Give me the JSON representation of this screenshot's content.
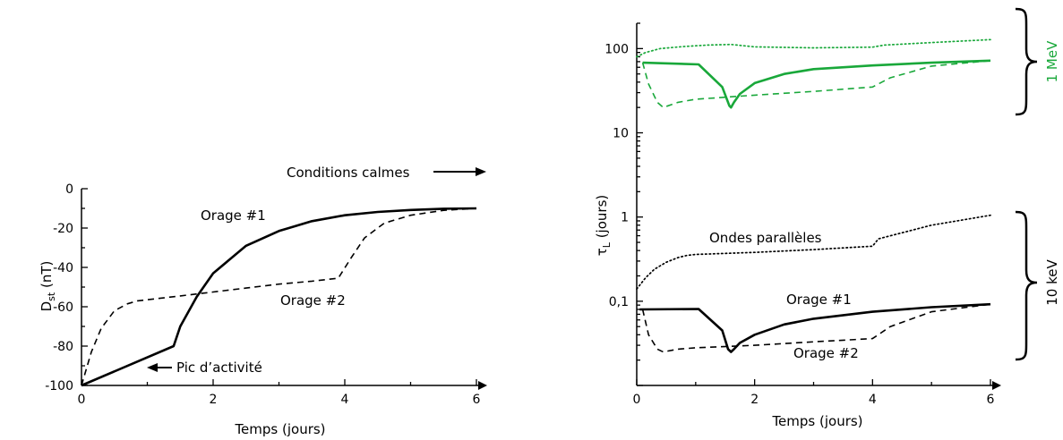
{
  "colors": {
    "black": "#000000",
    "green": "#19a83a"
  },
  "chart_data": [
    {
      "type": "line",
      "xlabel": "Temps (jours)",
      "ylabel_main": "D",
      "ylabel_sub": "st",
      "ylabel_unit": " (nT)",
      "xlim": [
        0,
        6
      ],
      "ylim": [
        -100,
        0
      ],
      "x_ticks": [
        0,
        2,
        4,
        6
      ],
      "x_tick_labels": [
        "0",
        "2",
        "4",
        "6"
      ],
      "y_ticks": [
        0,
        -20,
        -40,
        -60,
        -80,
        -100
      ],
      "y_tick_labels": [
        "0",
        "-20",
        "-40",
        "-60",
        "-80",
        "-100"
      ],
      "grid": false,
      "series": [
        {
          "name": "Orage #1",
          "style": "solid",
          "color": "#000000",
          "x": [
            0,
            1.4,
            1.5,
            1.75,
            2.0,
            2.5,
            3.0,
            3.5,
            4.0,
            4.5,
            5.0,
            5.5,
            6.0
          ],
          "y": [
            -100,
            -80,
            -70,
            -55,
            -43,
            -29,
            -21.5,
            -16.5,
            -13.5,
            -11.8,
            -10.8,
            -10.2,
            -10
          ]
        },
        {
          "name": "Orage #2",
          "style": "dashed",
          "color": "#000000",
          "x": [
            0,
            0.15,
            0.3,
            0.5,
            0.7,
            0.85,
            1.5,
            2.0,
            2.5,
            3.0,
            3.5,
            3.9,
            4.1,
            4.3,
            4.6,
            5.0,
            5.5,
            6.0
          ],
          "y": [
            -100,
            -83,
            -71,
            -62,
            -58.5,
            -57,
            -54.5,
            -52.5,
            -50.5,
            -48.5,
            -47,
            -45.5,
            -35,
            -25,
            -17.5,
            -13.5,
            -11,
            -10
          ]
        }
      ],
      "annotations": [
        {
          "text": "Orage #1",
          "x": 2.05,
          "y": -18
        },
        {
          "text": "Orage #2",
          "x": 3.95,
          "y": -59
        },
        {
          "text": "Conditions calmes",
          "arrow": "right"
        },
        {
          "text": "Pic d’activité",
          "arrow": "left"
        }
      ]
    },
    {
      "type": "line",
      "xlabel": "Temps (jours)",
      "ylabel_main": "τ",
      "ylabel_sub": "L",
      "ylabel_unit": " (jours)",
      "y_scale": "log",
      "xlim": [
        0,
        6
      ],
      "ylim": [
        0.01,
        200
      ],
      "x_ticks": [
        0,
        2,
        4,
        6
      ],
      "x_tick_labels": [
        "0",
        "2",
        "4",
        "6"
      ],
      "y_ticks": [
        100,
        10,
        1,
        0.1
      ],
      "y_tick_labels": [
        "100",
        "10",
        "1",
        "0,1"
      ],
      "grid": false,
      "series": [
        {
          "name": "1 MeV",
          "style": "dotted",
          "color": "#19a83a",
          "x": [
            0,
            0.15,
            0.4,
            0.8,
            1.2,
            1.6,
            2.0,
            3.0,
            4.0,
            4.2,
            5.0,
            6.0
          ],
          "y": [
            80,
            90,
            100,
            106,
            110,
            112,
            105,
            102,
            104,
            110,
            118,
            128
          ]
        },
        {
          "name": "1 MeV",
          "style": "solid",
          "color": "#19a83a",
          "x": [
            0.1,
            1.05,
            1.45,
            1.57,
            1.6,
            1.65,
            1.75,
            2.0,
            2.5,
            3.0,
            4.0,
            5.0,
            6.0
          ],
          "y": [
            68,
            65,
            35,
            21,
            20,
            23,
            29,
            39,
            50,
            57,
            63,
            68,
            72
          ]
        },
        {
          "name": "1 MeV",
          "style": "dashed",
          "color": "#19a83a",
          "x": [
            0.1,
            0.2,
            0.35,
            0.45,
            0.7,
            1.0,
            2.0,
            3.0,
            4.0,
            4.3,
            5.0,
            6.0
          ],
          "y": [
            68,
            38,
            23,
            20,
            23,
            25,
            28,
            31,
            35,
            45,
            62,
            72
          ]
        },
        {
          "name": "Ondes parallèles",
          "style": "dotted",
          "color": "#000000",
          "x": [
            0,
            0.15,
            0.3,
            0.5,
            0.7,
            0.85,
            1.0,
            2.0,
            3.0,
            4.0,
            4.1,
            4.5,
            5.0,
            6.0
          ],
          "y": [
            0.14,
            0.19,
            0.24,
            0.29,
            0.33,
            0.35,
            0.36,
            0.38,
            0.41,
            0.45,
            0.55,
            0.65,
            0.8,
            1.05
          ]
        },
        {
          "name": "Orage #1",
          "style": "solid",
          "color": "#000000",
          "x": [
            0.05,
            1.05,
            1.45,
            1.55,
            1.6,
            1.65,
            1.75,
            2.0,
            2.5,
            3.0,
            4.0,
            5.0,
            6.0
          ],
          "y": [
            0.08,
            0.081,
            0.045,
            0.027,
            0.025,
            0.027,
            0.032,
            0.04,
            0.053,
            0.062,
            0.075,
            0.085,
            0.092
          ]
        },
        {
          "name": "Orage #2",
          "style": "dashed",
          "color": "#000000",
          "x": [
            0.1,
            0.2,
            0.35,
            0.45,
            0.7,
            1.0,
            2.0,
            3.0,
            4.0,
            4.3,
            5.0,
            6.0
          ],
          "y": [
            0.08,
            0.04,
            0.027,
            0.025,
            0.027,
            0.028,
            0.03,
            0.033,
            0.036,
            0.05,
            0.075,
            0.092
          ]
        }
      ],
      "annotations": [
        {
          "text": "Ondes parallèles",
          "x": 1.2,
          "y": 0.55
        },
        {
          "text": "Orage #1",
          "x": 2.45,
          "y": 0.12
        },
        {
          "text": "Orage #2",
          "x": 2.57,
          "y": 0.019
        }
      ],
      "brackets": [
        {
          "label": "1 MeV",
          "color": "#19a83a"
        },
        {
          "label": "10 keV",
          "color": "#000000"
        }
      ]
    }
  ]
}
